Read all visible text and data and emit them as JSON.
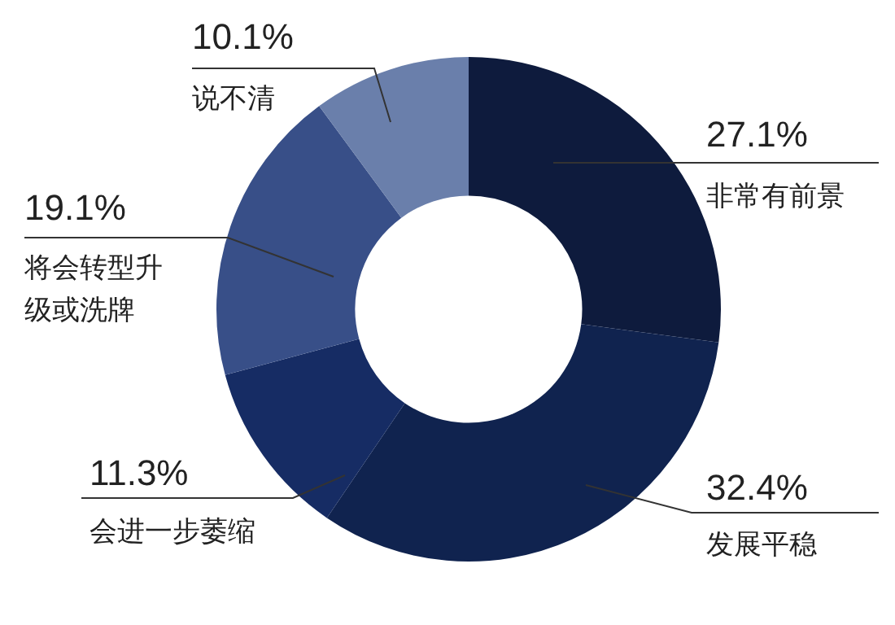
{
  "chart_data": {
    "type": "donut",
    "categories": [
      "非常有前景",
      "发展平稳",
      "会进一步萎缩",
      "将会转型升级或洗牌",
      "说不清"
    ],
    "values": [
      27.1,
      32.4,
      11.3,
      19.1,
      10.1
    ],
    "value_labels": [
      "27.1%",
      "32.4%",
      "11.3%",
      "19.1%",
      "10.1%"
    ],
    "colors": [
      "#0e1b3d",
      "#10234f",
      "#162c64",
      "#384f88",
      "#6a7fab"
    ],
    "legend": false
  }
}
